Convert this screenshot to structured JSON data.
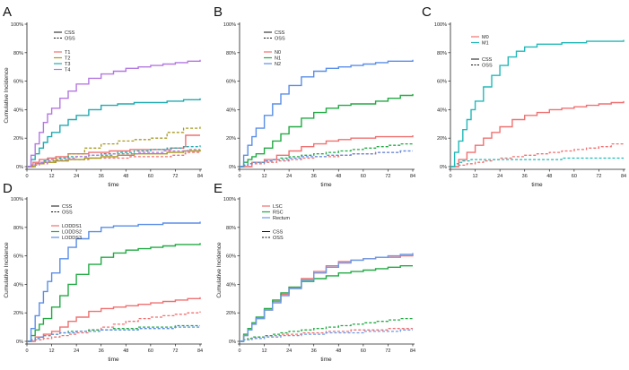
{
  "chart_data": [
    {
      "panel": "A",
      "type": "line",
      "xlabel": "time",
      "ylabel": "Cumulative Incidence",
      "xticks": [
        0,
        12,
        24,
        36,
        48,
        60,
        72,
        84
      ],
      "yticks": [
        "0%",
        "20%",
        "40%",
        "60%",
        "80%",
        "100%"
      ],
      "xlim": [
        0,
        84
      ],
      "ylim": [
        0,
        100
      ],
      "line_styles": [
        {
          "label": "CSS",
          "dash": "solid"
        },
        {
          "label": "OSS",
          "dash": "dashed"
        }
      ],
      "series": [
        {
          "name": "T1",
          "color": "#f07070",
          "x": [
            0,
            3,
            6,
            10,
            14,
            20,
            30,
            40,
            50,
            60,
            70,
            76,
            77,
            84
          ],
          "css": [
            0,
            3,
            5,
            6,
            7,
            9,
            10,
            11,
            12,
            12,
            13,
            14,
            22,
            22
          ],
          "oss": [
            0,
            1,
            2,
            3,
            4,
            5,
            6,
            6,
            7,
            7,
            8,
            9,
            10,
            10
          ]
        },
        {
          "name": "T2",
          "color": "#a89a20",
          "x": [
            0,
            4,
            8,
            14,
            20,
            28,
            36,
            44,
            52,
            60,
            68,
            76,
            84
          ],
          "css": [
            0,
            2,
            3,
            4,
            5,
            6,
            7,
            8,
            9,
            9,
            10,
            11,
            12
          ],
          "oss": [
            0,
            2,
            4,
            6,
            9,
            13,
            16,
            18,
            19,
            20,
            24,
            27,
            28
          ]
        },
        {
          "name": "T3",
          "color": "#22aab0",
          "x": [
            0,
            2,
            4,
            6,
            8,
            10,
            12,
            16,
            20,
            24,
            30,
            36,
            44,
            52,
            60,
            68,
            76,
            84
          ],
          "css": [
            0,
            5,
            9,
            13,
            17,
            21,
            24,
            29,
            33,
            36,
            40,
            43,
            44,
            45,
            45,
            46,
            47,
            48
          ],
          "oss": [
            0,
            1,
            2,
            3,
            4,
            5,
            5,
            6,
            7,
            7,
            8,
            9,
            10,
            11,
            12,
            13,
            14,
            15
          ]
        },
        {
          "name": "T4",
          "color": "#b478e0",
          "x": [
            0,
            2,
            4,
            6,
            8,
            10,
            12,
            16,
            20,
            24,
            30,
            36,
            42,
            48,
            54,
            60,
            66,
            72,
            78,
            84
          ],
          "css": [
            0,
            8,
            16,
            24,
            31,
            37,
            41,
            48,
            53,
            58,
            62,
            65,
            67,
            69,
            70,
            71,
            72,
            73,
            74,
            75
          ],
          "oss": [
            0,
            1,
            2,
            3,
            3,
            4,
            5,
            5,
            6,
            7,
            8,
            8,
            9,
            9,
            10,
            10,
            11,
            11,
            12,
            12
          ]
        }
      ]
    },
    {
      "panel": "B",
      "type": "line",
      "xlabel": "time",
      "ylabel": "",
      "xticks": [
        0,
        12,
        24,
        36,
        48,
        60,
        72,
        84
      ],
      "yticks": [
        "0%",
        "20%",
        "40%",
        "60%",
        "80%",
        "100%"
      ],
      "xlim": [
        0,
        84
      ],
      "ylim": [
        0,
        100
      ],
      "line_styles": [
        {
          "label": "CSS",
          "dash": "solid"
        },
        {
          "label": "OSS",
          "dash": "dashed"
        }
      ],
      "series": [
        {
          "name": "N0",
          "color": "#f07070",
          "x": [
            0,
            6,
            12,
            18,
            24,
            30,
            36,
            42,
            48,
            54,
            60,
            66,
            72,
            78,
            84
          ],
          "css": [
            0,
            3,
            5,
            8,
            11,
            14,
            16,
            18,
            19,
            20,
            20,
            21,
            21,
            21,
            22
          ],
          "oss": [
            0,
            2,
            3,
            4,
            5,
            6,
            7,
            7,
            8,
            9,
            9,
            10,
            10,
            11,
            11
          ]
        },
        {
          "name": "N1",
          "color": "#22aa44",
          "x": [
            0,
            2,
            4,
            6,
            8,
            12,
            16,
            20,
            24,
            30,
            36,
            42,
            48,
            54,
            60,
            66,
            72,
            78,
            84
          ],
          "css": [
            0,
            3,
            5,
            7,
            9,
            13,
            18,
            23,
            28,
            34,
            38,
            41,
            43,
            44,
            44,
            46,
            48,
            50,
            51
          ],
          "oss": [
            0,
            1,
            2,
            3,
            3,
            4,
            5,
            6,
            7,
            8,
            9,
            10,
            11,
            12,
            13,
            14,
            15,
            16,
            17
          ]
        },
        {
          "name": "N2",
          "color": "#5a8ee8",
          "x": [
            0,
            2,
            4,
            6,
            8,
            12,
            16,
            20,
            24,
            30,
            36,
            42,
            48,
            54,
            60,
            66,
            72,
            78,
            84
          ],
          "css": [
            0,
            8,
            15,
            21,
            27,
            36,
            44,
            51,
            57,
            63,
            67,
            69,
            70,
            71,
            72,
            73,
            74,
            74,
            75
          ],
          "oss": [
            0,
            1,
            2,
            3,
            3,
            4,
            5,
            5,
            6,
            7,
            7,
            8,
            8,
            9,
            9,
            10,
            10,
            11,
            11
          ]
        }
      ]
    },
    {
      "panel": "C",
      "type": "line",
      "xlabel": "time",
      "ylabel": "",
      "xticks": [
        0,
        12,
        24,
        36,
        48,
        60,
        72,
        84
      ],
      "yticks": [
        "0%",
        "20%",
        "40%",
        "60%",
        "80%",
        "100%"
      ],
      "xlim": [
        0,
        84
      ],
      "ylim": [
        0,
        100
      ],
      "line_styles": [
        {
          "label": "CSS",
          "dash": "solid"
        },
        {
          "label": "OSS",
          "dash": "dashed"
        }
      ],
      "series": [
        {
          "name": "M0",
          "color": "#f07070",
          "x": [
            0,
            4,
            8,
            12,
            16,
            20,
            24,
            30,
            36,
            42,
            48,
            54,
            60,
            66,
            72,
            78,
            84
          ],
          "css": [
            0,
            5,
            10,
            15,
            20,
            24,
            28,
            33,
            36,
            38,
            40,
            41,
            42,
            43,
            44,
            45,
            46
          ],
          "oss": [
            0,
            1,
            2,
            3,
            4,
            5,
            6,
            7,
            8,
            9,
            10,
            11,
            12,
            13,
            14,
            16,
            17
          ]
        },
        {
          "name": "M1",
          "color": "#22b8b8",
          "x": [
            0,
            2,
            4,
            6,
            8,
            10,
            12,
            16,
            20,
            24,
            28,
            32,
            36,
            42,
            48,
            54,
            60,
            66,
            72,
            78,
            84
          ],
          "css": [
            0,
            10,
            18,
            26,
            33,
            40,
            46,
            56,
            64,
            71,
            77,
            81,
            84,
            86,
            86,
            87,
            87,
            88,
            88,
            88,
            89
          ],
          "oss": [
            0,
            2,
            3,
            4,
            4,
            5,
            5,
            5,
            5,
            5,
            5,
            5,
            5,
            5,
            5,
            6,
            6,
            6,
            6,
            6,
            6
          ]
        }
      ]
    },
    {
      "panel": "D",
      "type": "line",
      "xlabel": "time",
      "ylabel": "Cumulative Incidence",
      "xticks": [
        0,
        12,
        24,
        36,
        48,
        60,
        72,
        84
      ],
      "yticks": [
        "0%",
        "20%",
        "40%",
        "60%",
        "80%",
        "100%"
      ],
      "xlim": [
        0,
        84
      ],
      "ylim": [
        0,
        100
      ],
      "line_styles": [
        {
          "label": "CSS",
          "dash": "solid"
        },
        {
          "label": "OSS",
          "dash": "dashed"
        }
      ],
      "series": [
        {
          "name": "LODDS1",
          "color": "#f07070",
          "x": [
            0,
            4,
            8,
            12,
            16,
            20,
            24,
            30,
            36,
            42,
            48,
            54,
            60,
            66,
            72,
            78,
            84
          ],
          "css": [
            0,
            3,
            5,
            7,
            10,
            14,
            17,
            21,
            23,
            24,
            25,
            26,
            27,
            28,
            29,
            30,
            31
          ],
          "oss": [
            0,
            1,
            2,
            3,
            4,
            5,
            6,
            8,
            10,
            12,
            14,
            16,
            17,
            18,
            19,
            20,
            21
          ]
        },
        {
          "name": "LODDS2",
          "color": "#22aa44",
          "x": [
            0,
            2,
            4,
            6,
            8,
            12,
            16,
            20,
            24,
            30,
            36,
            42,
            48,
            54,
            60,
            66,
            72,
            78,
            84
          ],
          "css": [
            0,
            4,
            8,
            12,
            16,
            24,
            32,
            40,
            47,
            54,
            59,
            62,
            64,
            65,
            66,
            67,
            68,
            68,
            69
          ],
          "oss": [
            0,
            1,
            2,
            3,
            4,
            5,
            6,
            7,
            7,
            8,
            8,
            9,
            9,
            10,
            10,
            10,
            11,
            11,
            11
          ]
        },
        {
          "name": "LODDS3",
          "color": "#5a8ee8",
          "x": [
            0,
            2,
            4,
            6,
            8,
            10,
            12,
            16,
            20,
            24,
            30,
            36,
            42,
            48,
            54,
            60,
            66,
            72,
            78,
            84
          ],
          "css": [
            0,
            9,
            18,
            27,
            35,
            42,
            48,
            58,
            66,
            72,
            77,
            80,
            81,
            81,
            82,
            82,
            83,
            83,
            83,
            84
          ],
          "oss": [
            0,
            1,
            2,
            3,
            4,
            4,
            5,
            6,
            6,
            7,
            7,
            8,
            8,
            8,
            9,
            9,
            9,
            10,
            10,
            10
          ]
        }
      ]
    },
    {
      "panel": "E",
      "type": "line",
      "xlabel": "time",
      "ylabel": "Cumulative Incidence",
      "xticks": [
        0,
        12,
        24,
        36,
        48,
        60,
        72,
        84
      ],
      "yticks": [
        "0%",
        "20%",
        "40%",
        "60%",
        "80%",
        "100%"
      ],
      "xlim": [
        0,
        84
      ],
      "ylim": [
        0,
        100
      ],
      "line_styles": [
        {
          "label": "CSS",
          "dash": "solid"
        },
        {
          "label": "OSS",
          "dash": "dashed"
        }
      ],
      "series": [
        {
          "name": "LSC",
          "color": "#f07070",
          "x": [
            0,
            2,
            4,
            6,
            8,
            12,
            16,
            20,
            24,
            30,
            36,
            42,
            48,
            54,
            60,
            66,
            72,
            78,
            84
          ],
          "css": [
            0,
            4,
            8,
            12,
            16,
            22,
            28,
            33,
            38,
            44,
            49,
            53,
            56,
            57,
            58,
            59,
            59,
            60,
            61
          ],
          "oss": [
            0,
            1,
            2,
            2,
            3,
            4,
            4,
            5,
            5,
            6,
            6,
            7,
            7,
            8,
            8,
            8,
            9,
            9,
            9
          ]
        },
        {
          "name": "RSC",
          "color": "#22aa44",
          "x": [
            0,
            2,
            4,
            6,
            8,
            12,
            16,
            20,
            24,
            30,
            36,
            42,
            48,
            54,
            60,
            66,
            72,
            78,
            84
          ],
          "css": [
            0,
            5,
            9,
            13,
            17,
            23,
            29,
            34,
            38,
            42,
            44,
            46,
            48,
            49,
            50,
            51,
            52,
            53,
            53
          ],
          "oss": [
            0,
            1,
            2,
            3,
            3,
            4,
            5,
            6,
            7,
            8,
            9,
            10,
            11,
            12,
            13,
            14,
            15,
            16,
            17
          ]
        },
        {
          "name": "Rectum",
          "color": "#6a9ae8",
          "x": [
            0,
            2,
            4,
            6,
            8,
            12,
            16,
            20,
            24,
            30,
            36,
            42,
            48,
            54,
            60,
            66,
            72,
            78,
            84
          ],
          "css": [
            0,
            4,
            8,
            12,
            16,
            22,
            27,
            32,
            37,
            43,
            48,
            52,
            55,
            57,
            58,
            59,
            60,
            61,
            62
          ],
          "oss": [
            0,
            1,
            1,
            2,
            2,
            3,
            3,
            4,
            4,
            5,
            5,
            6,
            6,
            6,
            7,
            7,
            7,
            8,
            8
          ]
        }
      ]
    }
  ]
}
